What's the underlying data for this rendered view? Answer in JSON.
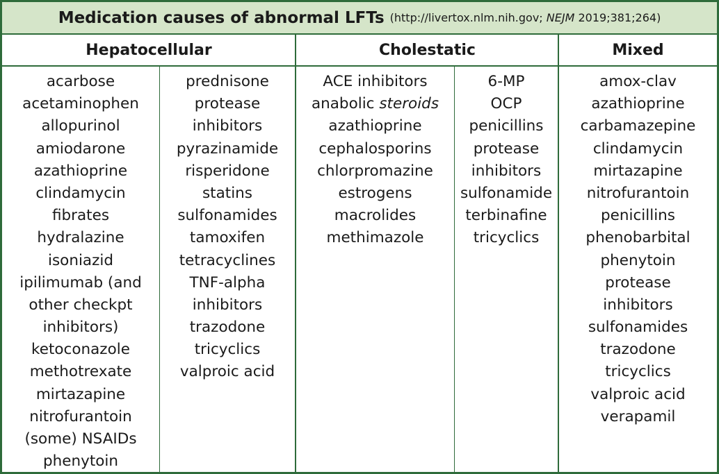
{
  "title": {
    "main": "Medication causes of abnormal LFTs",
    "source_prefix": "(http://livertox.nlm.nih.gov;",
    "source_journal": "NEJM",
    "source_suffix": "2019;381;264)"
  },
  "headers": {
    "hepatocellular": "Hepatocellular",
    "cholestatic": "Cholestatic",
    "mixed": "Mixed"
  },
  "hepatocellular_col1": [
    "acarbose",
    "acetaminophen",
    "allopurinol",
    "amiodarone",
    "azathioprine",
    "clindamycin",
    "fibrates",
    "hydralazine",
    "isoniazid",
    "ipilimumab (and",
    "other checkpt",
    "inhibitors)",
    "ketoconazole",
    "methotrexate",
    "mirtazapine",
    "nitrofurantoin",
    "(some) NSAIDs",
    "phenytoin"
  ],
  "hepatocellular_col2": [
    "prednisone",
    "protease",
    "inhibitors",
    "pyrazinamide",
    "risperidone",
    "statins",
    "sulfonamides",
    "tamoxifen",
    "tetracyclines",
    "TNF-alpha",
    "inhibitors",
    "trazodone",
    "tricyclics",
    "valproic acid"
  ],
  "cholestatic_col1": {
    "item1": "ACE inhibitors",
    "item2_prefix": "anabolic",
    "item2_italic": "steroids",
    "rest": [
      "azathioprine",
      "cephalosporins",
      "chlorpromazine",
      "estrogens",
      "macrolides",
      "methimazole"
    ]
  },
  "cholestatic_col2": [
    "6-MP",
    "OCP",
    "penicillins",
    "protease",
    "inhibitors",
    "sulfonamide",
    "terbinafine",
    "tricyclics"
  ],
  "mixed": [
    "amox-clav",
    "azathioprine",
    "carbamazepine",
    "clindamycin",
    "mirtazapine",
    "nitrofurantoin",
    "penicillins",
    "phenobarbital",
    "phenytoin",
    "protease",
    "inhibitors",
    "sulfonamides",
    "trazodone",
    "tricyclics",
    "valproic acid",
    "verapamil"
  ],
  "colors": {
    "border": "#2e6b3a",
    "title_background": "#d5e5c9"
  }
}
